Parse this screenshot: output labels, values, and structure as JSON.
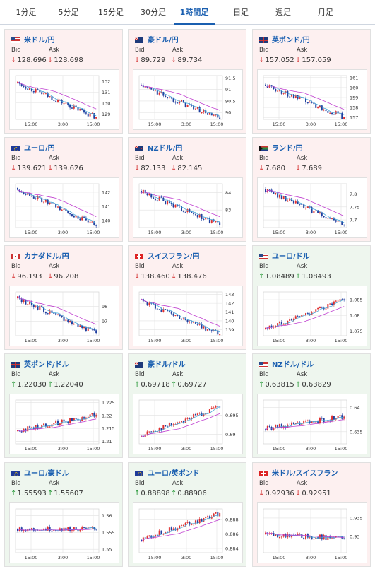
{
  "tabs": [
    {
      "label": "1分足",
      "active": false
    },
    {
      "label": "5分足",
      "active": false
    },
    {
      "label": "15分足",
      "active": false
    },
    {
      "label": "30分足",
      "active": false
    },
    {
      "label": "1時間足",
      "active": true
    },
    {
      "label": "日足",
      "active": false
    },
    {
      "label": "週足",
      "active": false
    },
    {
      "label": "月足",
      "active": false
    }
  ],
  "labels": {
    "bid": "Bid",
    "ask": "Ask"
  },
  "colors": {
    "up_candle": "#e03030",
    "down_candle": "#1f3fa0",
    "sma_short": "#4aa8d8",
    "sma_long": "#c040d0",
    "up_arrow": "#2a9a3a",
    "down_arrow": "#d43030",
    "down_bg": "#fdf0f0",
    "up_bg": "#eef6ee"
  },
  "xticks": [
    "15:00",
    "3:00",
    "15:00"
  ],
  "pairs": [
    {
      "name": "米ドル/円",
      "flag": "f-us",
      "dir": "down",
      "bid": "128.696",
      "ask": "128.698",
      "yticks": [
        "132",
        "131",
        "130",
        "129"
      ],
      "start": 131.9,
      "end": 128.7,
      "ymin": 128.5,
      "ymax": 132.5
    },
    {
      "name": "豪ドル/円",
      "flag": "f-au",
      "dir": "down",
      "bid": "89.729",
      "ask": "89.734",
      "yticks": [
        "91.5",
        "91",
        "90.5",
        "90"
      ],
      "start": 91.2,
      "end": 89.73,
      "ymin": 89.7,
      "ymax": 91.6
    },
    {
      "name": "英ポンド/円",
      "flag": "f-gb",
      "dir": "down",
      "bid": "157.052",
      "ask": "157.059",
      "yticks": [
        "161",
        "160",
        "159",
        "158",
        "157"
      ],
      "start": 160.3,
      "end": 157.05,
      "ymin": 156.8,
      "ymax": 161.2
    },
    {
      "name": "ユーロ/円",
      "flag": "f-eu",
      "dir": "down",
      "bid": "139.621",
      "ask": "139.626",
      "yticks": [
        "142",
        "141",
        "140"
      ],
      "start": 142.3,
      "end": 139.62,
      "ymin": 139.5,
      "ymax": 142.6
    },
    {
      "name": "NZドル/円",
      "flag": "f-nz",
      "dir": "down",
      "bid": "82.133",
      "ask": "82.145",
      "yticks": [
        "84",
        "83"
      ],
      "start": 84.1,
      "end": 82.13,
      "ymin": 82.0,
      "ymax": 84.5
    },
    {
      "name": "ランド/円",
      "flag": "f-za",
      "dir": "down",
      "bid": "7.680",
      "ask": "7.689",
      "yticks": [
        "7.8",
        "7.75",
        "7.7"
      ],
      "start": 7.82,
      "end": 7.68,
      "ymin": 7.67,
      "ymax": 7.84
    },
    {
      "name": "カナダドル/円",
      "flag": "f-ca",
      "dir": "down",
      "bid": "96.193",
      "ask": "96.208",
      "yticks": [
        "98",
        "97"
      ],
      "start": 98.6,
      "end": 96.19,
      "ymin": 96.0,
      "ymax": 99.0
    },
    {
      "name": "スイスフラン/円",
      "flag": "f-ch",
      "dir": "down",
      "bid": "138.460",
      "ask": "138.476",
      "yticks": [
        "143",
        "142",
        "141",
        "140",
        "139"
      ],
      "start": 142.4,
      "end": 138.46,
      "ymin": 138.3,
      "ymax": 143.3
    },
    {
      "name": "ユーロ/ドル",
      "flag": "f-us",
      "dir": "up",
      "bid": "1.08489",
      "ask": "1.08493",
      "yticks": [
        "1.085",
        "1.08",
        "1.075"
      ],
      "start": 1.0755,
      "end": 1.0849,
      "ymin": 1.0735,
      "ymax": 1.0875
    },
    {
      "name": "英ポンド/ドル",
      "flag": "f-gb",
      "dir": "up",
      "bid": "1.22030",
      "ask": "1.22040",
      "yticks": [
        "1.225",
        "1.22",
        "1.215",
        "1.21"
      ],
      "start": 1.214,
      "end": 1.2203,
      "ymin": 1.209,
      "ymax": 1.226
    },
    {
      "name": "豪ドル/ドル",
      "flag": "f-au",
      "dir": "up",
      "bid": "0.69718",
      "ask": "0.69727",
      "yticks": [
        "0.695",
        "0.69"
      ],
      "start": 0.6895,
      "end": 0.6972,
      "ymin": 0.6875,
      "ymax": 0.699
    },
    {
      "name": "NZドル/ドル",
      "flag": "f-us",
      "dir": "up",
      "bid": "0.63815",
      "ask": "0.63829",
      "yticks": [
        "0.64",
        "0.635"
      ],
      "start": 0.6355,
      "end": 0.6381,
      "ymin": 0.6325,
      "ymax": 0.6415
    },
    {
      "name": "ユーロ/豪ドル",
      "flag": "f-eu",
      "dir": "up",
      "bid": "1.55593",
      "ask": "1.55607",
      "yticks": [
        "1.56",
        "1.555",
        "1.55"
      ],
      "start": 1.556,
      "end": 1.5559,
      "ymin": 1.549,
      "ymax": 1.562
    },
    {
      "name": "ユーロ/英ポンド",
      "flag": "f-eu",
      "dir": "up",
      "bid": "0.88898",
      "ask": "0.88906",
      "yticks": [
        "0.888",
        "0.886",
        "0.884"
      ],
      "start": 0.8852,
      "end": 0.8889,
      "ymin": 0.8834,
      "ymax": 0.8895
    },
    {
      "name": "米ドル/スイスフラン",
      "flag": "f-ch",
      "dir": "down",
      "bid": "0.92936",
      "ask": "0.92951",
      "yticks": [
        "0.935",
        "0.93"
      ],
      "start": 0.9305,
      "end": 0.9294,
      "ymin": 0.9255,
      "ymax": 0.9375
    }
  ]
}
